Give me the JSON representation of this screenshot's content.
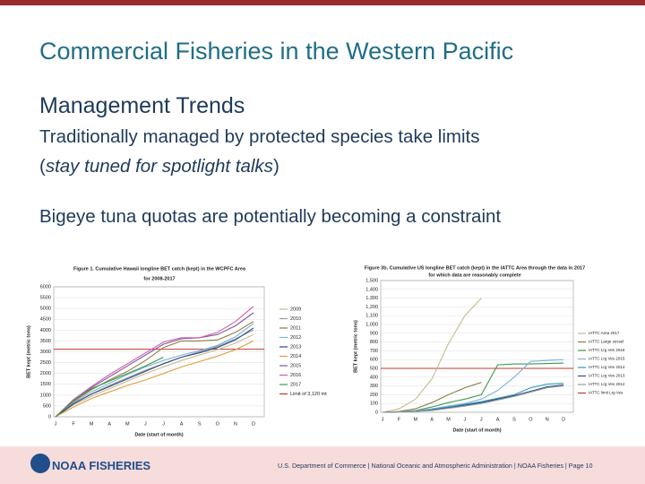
{
  "header": {
    "title": "Commercial Fisheries in the Western Pacific"
  },
  "body": {
    "heading": "Management Trends",
    "line1": "Traditionally managed by protected species take limits",
    "line2": {
      "open": "(",
      "italic": "stay tuned for spotlight talks",
      "close": ")"
    },
    "line3": "Bigeye tuna quotas are potentially becoming a constraint"
  },
  "charts": [
    {
      "type": "line",
      "title_lines": [
        "Figure 1. Cumulative Hawaii longline BET catch (kept) in the WCPFC Area",
        "for 2008-2017"
      ],
      "xlabel": "Date (start of month)",
      "ylabel": "BET kept (metric tons)",
      "categories": [
        "J",
        "F",
        "M",
        "A",
        "M",
        "J",
        "J",
        "A",
        "S",
        "O",
        "N",
        "D"
      ],
      "ylim": [
        0,
        6000
      ],
      "yticks": [
        0,
        500,
        1000,
        1500,
        2000,
        2500,
        3000,
        3500,
        4000,
        4500,
        5000,
        5500,
        6000
      ],
      "series": [
        {
          "name": "2009",
          "color": "#c9b98c",
          "values": [
            0,
            550,
            950,
            1300,
            1650,
            2000,
            2300,
            2600,
            2850,
            3100,
            3400,
            3800
          ]
        },
        {
          "name": "2010",
          "color": "#9a9a9a",
          "values": [
            0,
            600,
            1050,
            1450,
            1800,
            2150,
            2450,
            2750,
            3000,
            3250,
            3600,
            4000
          ]
        },
        {
          "name": "2011",
          "color": "#8c7c46",
          "values": [
            0,
            700,
            1250,
            1700,
            2100,
            2600,
            3200,
            3500,
            3500,
            3550,
            3900,
            4400
          ]
        },
        {
          "name": "2012",
          "color": "#7fb2d8",
          "values": [
            0,
            650,
            1150,
            1550,
            1950,
            2300,
            2600,
            2850,
            3050,
            3300,
            3700,
            4300
          ]
        },
        {
          "name": "2013",
          "color": "#2d4a8a",
          "values": [
            0,
            600,
            1050,
            1400,
            1750,
            2100,
            2450,
            2750,
            2950,
            3200,
            3550,
            4100
          ]
        },
        {
          "name": "2014",
          "color": "#e39b3b",
          "values": [
            0,
            450,
            850,
            1150,
            1450,
            1700,
            2000,
            2300,
            2550,
            2800,
            3100,
            3500
          ]
        },
        {
          "name": "2015",
          "color": "#7a5a9e",
          "values": [
            0,
            750,
            1350,
            1850,
            2350,
            2850,
            3350,
            3600,
            3650,
            3800,
            4200,
            4800
          ]
        },
        {
          "name": "2016",
          "color": "#d65aa8",
          "values": [
            0,
            800,
            1400,
            1950,
            2450,
            2950,
            3450,
            3650,
            3650,
            3900,
            4400,
            5100
          ]
        },
        {
          "name": "2017",
          "color": "#3c9a4a",
          "values": [
            0,
            750,
            1300,
            1650,
            2000,
            2350,
            2750,
            null,
            null,
            null,
            null,
            null
          ]
        }
      ],
      "limit": {
        "value": 3120,
        "label": "Limit of 3,120 mt",
        "color": "#c0392b"
      }
    },
    {
      "type": "line",
      "title_lines": [
        "Figure 3b. Cumulative US longline BET catch (kept) in the IATTC Area through the data in 2017",
        "for which data are reasonably complete"
      ],
      "xlabel": "Date (start of month)",
      "ylabel": "BET kept (metric tons)",
      "categories": [
        "J",
        "F",
        "M",
        "A",
        "M",
        "J",
        "J",
        "A",
        "S",
        "O",
        "N",
        "D"
      ],
      "ylim": [
        0,
        1500
      ],
      "yticks": [
        0,
        100,
        200,
        300,
        400,
        500,
        600,
        700,
        800,
        900,
        {
          "value": 1000,
          "label": "1,000"
        },
        {
          "value": 1100,
          "label": "1,100"
        },
        {
          "value": 1200,
          "label": "1,200"
        },
        {
          "value": 1300,
          "label": "1,300"
        },
        {
          "value": 1400,
          "label": "1,400"
        },
        {
          "value": 1500,
          "label": "1,500"
        }
      ],
      "series": [
        {
          "name": "IATTC Area 2017",
          "color": "#c9b98c",
          "values": [
            0,
            40,
            150,
            380,
            780,
            1100,
            1300,
            null,
            null,
            null,
            null,
            null
          ]
        },
        {
          "name": "IATTC Large vessel",
          "color": "#8c7c46",
          "values": [
            0,
            10,
            40,
            110,
            200,
            280,
            340,
            null,
            null,
            null,
            null,
            null
          ]
        },
        {
          "name": "IATTC Lrg Ves 2016",
          "color": "#3c9a4a",
          "values": [
            0,
            5,
            20,
            60,
            110,
            150,
            200,
            540,
            550,
            550,
            555,
            560
          ]
        },
        {
          "name": "IATTC Lrg Ves 2015",
          "color": "#7fb2d8",
          "values": [
            0,
            5,
            15,
            40,
            70,
            100,
            150,
            250,
            400,
            580,
            590,
            600
          ]
        },
        {
          "name": "IATTC Lrg Ves 2014",
          "color": "#2d9ab8",
          "values": [
            0,
            5,
            10,
            30,
            60,
            90,
            120,
            160,
            200,
            280,
            320,
            330
          ]
        },
        {
          "name": "IATTC Lrg Ves 2013",
          "color": "#2d4a8a",
          "values": [
            0,
            5,
            10,
            25,
            50,
            80,
            110,
            150,
            190,
            240,
            290,
            310
          ]
        },
        {
          "name": "IATTC Lrg Ves 2012",
          "color": "#9a9a9a",
          "values": [
            0,
            5,
            10,
            20,
            45,
            70,
            100,
            140,
            180,
            230,
            280,
            300
          ]
        }
      ],
      "limit": {
        "value": 500,
        "label": "IATTC limit Lrg Ves",
        "color": "#c0392b"
      }
    }
  ],
  "footer": {
    "logo": "NOAA FISHERIES",
    "text": "U.S. Department of Commerce | National Oceanic and Atmospheric Administration | NOAA Fisheries | Page 10"
  }
}
